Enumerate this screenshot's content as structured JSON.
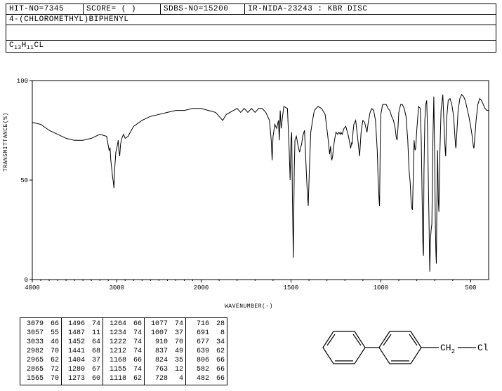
{
  "header": {
    "hit_no": "HIT-NO=7345",
    "score": "SCORE=   (   )",
    "sdbs_no": "SDBS-NO=15200",
    "method": "IR-NIDA-23243 : KBR DISC"
  },
  "compound_name": "4-(CHLOROMETHYL)BIPHENYL",
  "formula_parts": {
    "c": "C",
    "c_sub": "13",
    "h": "H",
    "h_sub": "11",
    "cl": "CL"
  },
  "chart": {
    "type": "line",
    "xlabel": "WAVENUMBER(-)",
    "ylabel": "TRANSMITTANCE(%)",
    "xlim": [
      4000,
      400
    ],
    "ylim": [
      0,
      100
    ],
    "xticks": [
      4000,
      3000,
      2000,
      1500,
      1000,
      500
    ],
    "yticks": [
      0,
      50,
      100
    ],
    "line_color": "#000000",
    "line_width": 1,
    "border_color": "#000000",
    "background_color": "#ffffff",
    "data": [
      [
        4000,
        79
      ],
      [
        3900,
        78
      ],
      [
        3800,
        75
      ],
      [
        3700,
        73
      ],
      [
        3600,
        71
      ],
      [
        3500,
        70
      ],
      [
        3400,
        70
      ],
      [
        3300,
        71
      ],
      [
        3200,
        73
      ],
      [
        3120,
        72
      ],
      [
        3090,
        65
      ],
      [
        3079,
        66
      ],
      [
        3070,
        60
      ],
      [
        3057,
        55
      ],
      [
        3050,
        52
      ],
      [
        3040,
        49
      ],
      [
        3033,
        46
      ],
      [
        3025,
        55
      ],
      [
        3010,
        64
      ],
      [
        2995,
        67
      ],
      [
        2982,
        70
      ],
      [
        2975,
        65
      ],
      [
        2965,
        62
      ],
      [
        2955,
        68
      ],
      [
        2940,
        71
      ],
      [
        2920,
        73
      ],
      [
        2900,
        71
      ],
      [
        2865,
        72
      ],
      [
        2840,
        74
      ],
      [
        2800,
        77
      ],
      [
        2700,
        80
      ],
      [
        2600,
        82
      ],
      [
        2500,
        83
      ],
      [
        2400,
        84
      ],
      [
        2300,
        85
      ],
      [
        2200,
        85
      ],
      [
        2100,
        86
      ],
      [
        2000,
        86
      ],
      [
        1960,
        85
      ],
      [
        1920,
        84
      ],
      [
        1900,
        82
      ],
      [
        1880,
        80
      ],
      [
        1860,
        83
      ],
      [
        1820,
        85
      ],
      [
        1800,
        86
      ],
      [
        1780,
        84
      ],
      [
        1760,
        86
      ],
      [
        1740,
        84
      ],
      [
        1720,
        86
      ],
      [
        1700,
        84
      ],
      [
        1680,
        86
      ],
      [
        1660,
        86
      ],
      [
        1640,
        84
      ],
      [
        1620,
        80
      ],
      [
        1610,
        70
      ],
      [
        1605,
        60
      ],
      [
        1600,
        72
      ],
      [
        1590,
        78
      ],
      [
        1580,
        76
      ],
      [
        1570,
        80
      ],
      [
        1565,
        70
      ],
      [
        1560,
        85
      ],
      [
        1555,
        76
      ],
      [
        1540,
        87
      ],
      [
        1520,
        86
      ],
      [
        1510,
        65
      ],
      [
        1505,
        50
      ],
      [
        1500,
        70
      ],
      [
        1496,
        74
      ],
      [
        1492,
        40
      ],
      [
        1487,
        11
      ],
      [
        1482,
        55
      ],
      [
        1478,
        70
      ],
      [
        1470,
        72
      ],
      [
        1460,
        67
      ],
      [
        1455,
        65
      ],
      [
        1452,
        64
      ],
      [
        1448,
        66
      ],
      [
        1441,
        68
      ],
      [
        1435,
        72
      ],
      [
        1425,
        75
      ],
      [
        1415,
        55
      ],
      [
        1410,
        45
      ],
      [
        1404,
        37
      ],
      [
        1398,
        55
      ],
      [
        1390,
        74
      ],
      [
        1380,
        80
      ],
      [
        1370,
        85
      ],
      [
        1350,
        87
      ],
      [
        1330,
        86
      ],
      [
        1310,
        83
      ],
      [
        1295,
        72
      ],
      [
        1285,
        63
      ],
      [
        1280,
        67
      ],
      [
        1275,
        61
      ],
      [
        1273,
        60
      ],
      [
        1268,
        62
      ],
      [
        1264,
        66
      ],
      [
        1258,
        70
      ],
      [
        1250,
        74
      ],
      [
        1240,
        73
      ],
      [
        1234,
        74
      ],
      [
        1225,
        73
      ],
      [
        1222,
        74
      ],
      [
        1215,
        73
      ],
      [
        1212,
        74
      ],
      [
        1205,
        76
      ],
      [
        1195,
        77
      ],
      [
        1180,
        72
      ],
      [
        1170,
        67
      ],
      [
        1168,
        66
      ],
      [
        1162,
        69
      ],
      [
        1160,
        68
      ],
      [
        1155,
        74
      ],
      [
        1150,
        78
      ],
      [
        1140,
        80
      ],
      [
        1125,
        68
      ],
      [
        1118,
        62
      ],
      [
        1110,
        74
      ],
      [
        1100,
        80
      ],
      [
        1090,
        79
      ],
      [
        1080,
        75
      ],
      [
        1077,
        74
      ],
      [
        1070,
        79
      ],
      [
        1060,
        84
      ],
      [
        1050,
        86
      ],
      [
        1040,
        85
      ],
      [
        1030,
        80
      ],
      [
        1020,
        65
      ],
      [
        1015,
        50
      ],
      [
        1010,
        40
      ],
      [
        1007,
        37
      ],
      [
        1003,
        72
      ],
      [
        1000,
        83
      ],
      [
        990,
        88
      ],
      [
        980,
        88
      ],
      [
        970,
        88
      ],
      [
        960,
        86
      ],
      [
        950,
        85
      ],
      [
        940,
        82
      ],
      [
        930,
        80
      ],
      [
        920,
        76
      ],
      [
        915,
        72
      ],
      [
        910,
        70
      ],
      [
        905,
        76
      ],
      [
        900,
        84
      ],
      [
        890,
        88
      ],
      [
        880,
        88
      ],
      [
        870,
        86
      ],
      [
        860,
        82
      ],
      [
        850,
        70
      ],
      [
        843,
        55
      ],
      [
        837,
        49
      ],
      [
        832,
        40
      ],
      [
        828,
        36
      ],
      [
        824,
        35
      ],
      [
        820,
        50
      ],
      [
        815,
        70
      ],
      [
        810,
        65
      ],
      [
        806,
        66
      ],
      [
        800,
        75
      ],
      [
        790,
        87
      ],
      [
        780,
        86
      ],
      [
        775,
        70
      ],
      [
        770,
        40
      ],
      [
        767,
        22
      ],
      [
        765,
        14
      ],
      [
        763,
        12
      ],
      [
        760,
        55
      ],
      [
        755,
        80
      ],
      [
        750,
        88
      ],
      [
        745,
        90
      ],
      [
        740,
        75
      ],
      [
        735,
        45
      ],
      [
        732,
        30
      ],
      [
        728,
        4
      ],
      [
        724,
        20
      ],
      [
        720,
        25
      ],
      [
        716,
        28
      ],
      [
        710,
        72
      ],
      [
        705,
        92
      ],
      [
        700,
        60
      ],
      [
        697,
        30
      ],
      [
        694,
        14
      ],
      [
        691,
        8
      ],
      [
        688,
        40
      ],
      [
        684,
        65
      ],
      [
        680,
        40
      ],
      [
        677,
        34
      ],
      [
        672,
        62
      ],
      [
        665,
        85
      ],
      [
        655,
        93
      ],
      [
        645,
        70
      ],
      [
        642,
        65
      ],
      [
        639,
        62
      ],
      [
        635,
        80
      ],
      [
        625,
        90
      ],
      [
        615,
        91
      ],
      [
        605,
        88
      ],
      [
        595,
        82
      ],
      [
        588,
        72
      ],
      [
        584,
        67
      ],
      [
        582,
        66
      ],
      [
        578,
        72
      ],
      [
        570,
        85
      ],
      [
        560,
        91
      ],
      [
        550,
        93
      ],
      [
        540,
        92
      ],
      [
        530,
        90
      ],
      [
        520,
        86
      ],
      [
        510,
        82
      ],
      [
        500,
        77
      ],
      [
        490,
        71
      ],
      [
        485,
        67
      ],
      [
        482,
        66
      ],
      [
        478,
        70
      ],
      [
        470,
        80
      ],
      [
        460,
        88
      ],
      [
        450,
        91
      ],
      [
        440,
        90
      ],
      [
        430,
        88
      ],
      [
        420,
        86
      ],
      [
        410,
        85
      ],
      [
        400,
        85
      ]
    ]
  },
  "peak_columns": [
    [
      [
        "3079",
        "66"
      ],
      [
        "3057",
        "55"
      ],
      [
        "3033",
        "46"
      ],
      [
        "2982",
        "70"
      ],
      [
        "2965",
        "62"
      ],
      [
        "2865",
        "72"
      ],
      [
        "1565",
        "70"
      ]
    ],
    [
      [
        "1496",
        "74"
      ],
      [
        "1487",
        "11"
      ],
      [
        "1452",
        "64"
      ],
      [
        "1441",
        "68"
      ],
      [
        "1404",
        "37"
      ],
      [
        "1280",
        "67"
      ],
      [
        "1273",
        "60"
      ]
    ],
    [
      [
        "1264",
        "66"
      ],
      [
        "1234",
        "74"
      ],
      [
        "1222",
        "74"
      ],
      [
        "1212",
        "74"
      ],
      [
        "1168",
        "66"
      ],
      [
        "1155",
        "74"
      ],
      [
        "1118",
        "62"
      ]
    ],
    [
      [
        "1077",
        "74"
      ],
      [
        "1007",
        "37"
      ],
      [
        "910",
        "70"
      ],
      [
        "837",
        "49"
      ],
      [
        "824",
        "35"
      ],
      [
        "763",
        "12"
      ],
      [
        "728",
        "4"
      ]
    ],
    [
      [
        "716",
        "28"
      ],
      [
        "691",
        "8"
      ],
      [
        "677",
        "34"
      ],
      [
        "639",
        "62"
      ],
      [
        "806",
        "66"
      ],
      [
        "582",
        "66"
      ],
      [
        "482",
        "66"
      ]
    ]
  ],
  "structure_label": {
    "ch2": "CH",
    "ch2_sub": "2",
    "cl": "Cl"
  }
}
